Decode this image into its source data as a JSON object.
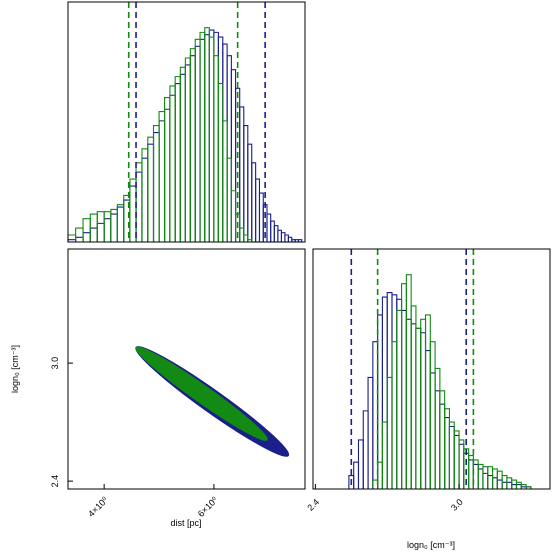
{
  "chart_data": [
    {
      "panel": "dist-marginal",
      "type": "histogram",
      "x_scale": "log",
      "xlim": [
        3.5,
        8.4
      ],
      "series": [
        {
          "color": "#1b1f8a",
          "bin_centers": [
            3.55,
            3.65,
            3.75,
            3.85,
            3.95,
            4.05,
            4.15,
            4.25,
            4.35,
            4.45,
            4.55,
            4.65,
            4.75,
            4.85,
            4.95,
            5.05,
            5.15,
            5.25,
            5.35,
            5.45,
            5.55,
            5.65,
            5.75,
            5.85,
            5.95,
            6.05,
            6.15,
            6.25,
            6.35,
            6.45,
            6.55,
            6.65,
            6.75,
            6.85,
            6.95,
            7.05,
            7.15,
            7.25,
            7.35,
            7.45,
            7.55,
            7.65,
            7.75,
            7.85,
            7.95,
            8.05,
            8.15,
            8.25
          ],
          "values": [
            1,
            2,
            4,
            6,
            8,
            10,
            12,
            15,
            18,
            24,
            30,
            36,
            42,
            47,
            52,
            57,
            63,
            68,
            72,
            76,
            80,
            84,
            87,
            89,
            91,
            90,
            88,
            85,
            80,
            74,
            66,
            58,
            50,
            42,
            34,
            27,
            21,
            16,
            12,
            9,
            7,
            5,
            4,
            3,
            2,
            1,
            1,
            1
          ],
          "vlines": [
            4.5,
            7.25
          ]
        },
        {
          "color": "#138a13",
          "bin_centers": [
            3.55,
            3.65,
            3.75,
            3.85,
            3.95,
            4.05,
            4.15,
            4.25,
            4.35,
            4.45,
            4.55,
            4.65,
            4.75,
            4.85,
            4.95,
            5.05,
            5.15,
            5.25,
            5.35,
            5.45,
            5.55,
            5.65,
            5.75,
            5.85,
            5.95,
            6.05,
            6.15,
            6.25,
            6.35,
            6.45,
            6.55,
            6.65,
            6.75,
            6.85,
            6.95,
            7.05,
            7.15,
            7.25,
            7.35,
            7.45,
            7.55,
            7.65,
            7.75,
            7.85,
            7.95,
            8.05,
            8.15,
            8.25
          ],
          "values": [
            3,
            6,
            10,
            12,
            13,
            13,
            14,
            16,
            20,
            27,
            34,
            40,
            45,
            50,
            56,
            62,
            67,
            71,
            75,
            79,
            83,
            87,
            90,
            92,
            88,
            80,
            68,
            52,
            36,
            22,
            12,
            6,
            3,
            1,
            0,
            0,
            0,
            0,
            0,
            0,
            0,
            0,
            0,
            0,
            0,
            0,
            0,
            0
          ],
          "vlines": [
            4.38,
            6.55
          ]
        }
      ]
    },
    {
      "panel": "joint",
      "type": "contour",
      "x_scale": "log",
      "xlim": [
        3.5,
        8.4
      ],
      "ylim": [
        2.36,
        3.58
      ],
      "x_ticks": [
        {
          "value": 4.0,
          "label": "4×10⁰"
        },
        {
          "value": 6.0,
          "label": "6×10⁰"
        }
      ],
      "y_ticks": [
        {
          "value": 2.4,
          "label": "2.4"
        },
        {
          "value": 3.0,
          "label": "3.0"
        }
      ],
      "xlabel": "dist [pc]",
      "ylabel": "logn₀ [cm⁻³]",
      "series": [
        {
          "color": "#1b1f8a",
          "x_range": [
            4.5,
            7.9
          ],
          "y_range": [
            2.53,
            3.08
          ]
        },
        {
          "color": "#138a13",
          "x_range": [
            4.5,
            7.3
          ],
          "y_range": [
            2.61,
            3.08
          ]
        }
      ]
    },
    {
      "panel": "logn0-marginal",
      "type": "histogram",
      "xlim": [
        2.39,
        3.38
      ],
      "x_ticks": [
        {
          "value": 2.4,
          "label": "2.4"
        },
        {
          "value": 3.0,
          "label": "3.0"
        }
      ],
      "xlabel": "logn₀ [cm⁻³]",
      "series": [
        {
          "color": "#1b1f8a",
          "bin_centers": [
            2.55,
            2.57,
            2.59,
            2.61,
            2.63,
            2.65,
            2.67,
            2.69,
            2.71,
            2.73,
            2.75,
            2.77,
            2.79,
            2.81,
            2.83,
            2.85,
            2.87,
            2.89,
            2.91,
            2.93,
            2.95,
            2.97,
            2.99,
            3.01,
            3.03,
            3.05,
            3.07,
            3.09,
            3.11,
            3.13,
            3.15,
            3.17,
            3.19,
            3.21,
            3.23,
            3.25,
            3.27,
            3.29
          ],
          "values": [
            6,
            12,
            22,
            35,
            50,
            66,
            78,
            86,
            88,
            87,
            85,
            80,
            76,
            74,
            72,
            70,
            62,
            52,
            44,
            38,
            32,
            28,
            24,
            20,
            16,
            13,
            11,
            9,
            7,
            6,
            5,
            4,
            3,
            3,
            2,
            2,
            1,
            1
          ],
          "vlines": [
            2.55,
            3.03
          ]
        },
        {
          "color": "#138a13",
          "bin_centers": [
            2.65,
            2.67,
            2.69,
            2.71,
            2.73,
            2.75,
            2.77,
            2.79,
            2.81,
            2.83,
            2.85,
            2.87,
            2.89,
            2.91,
            2.93,
            2.95,
            2.97,
            2.99,
            3.01,
            3.03,
            3.05,
            3.07,
            3.09,
            3.11,
            3.13,
            3.15,
            3.17,
            3.19,
            3.21,
            3.23,
            3.25,
            3.27,
            3.29
          ],
          "values": [
            4,
            12,
            30,
            50,
            66,
            80,
            92,
            96,
            82,
            72,
            76,
            78,
            66,
            54,
            44,
            36,
            30,
            26,
            22,
            18,
            15,
            13,
            11,
            10,
            10,
            9,
            8,
            6,
            5,
            4,
            3,
            2,
            1
          ],
          "vlines": [
            2.66,
            3.06
          ]
        }
      ]
    }
  ]
}
